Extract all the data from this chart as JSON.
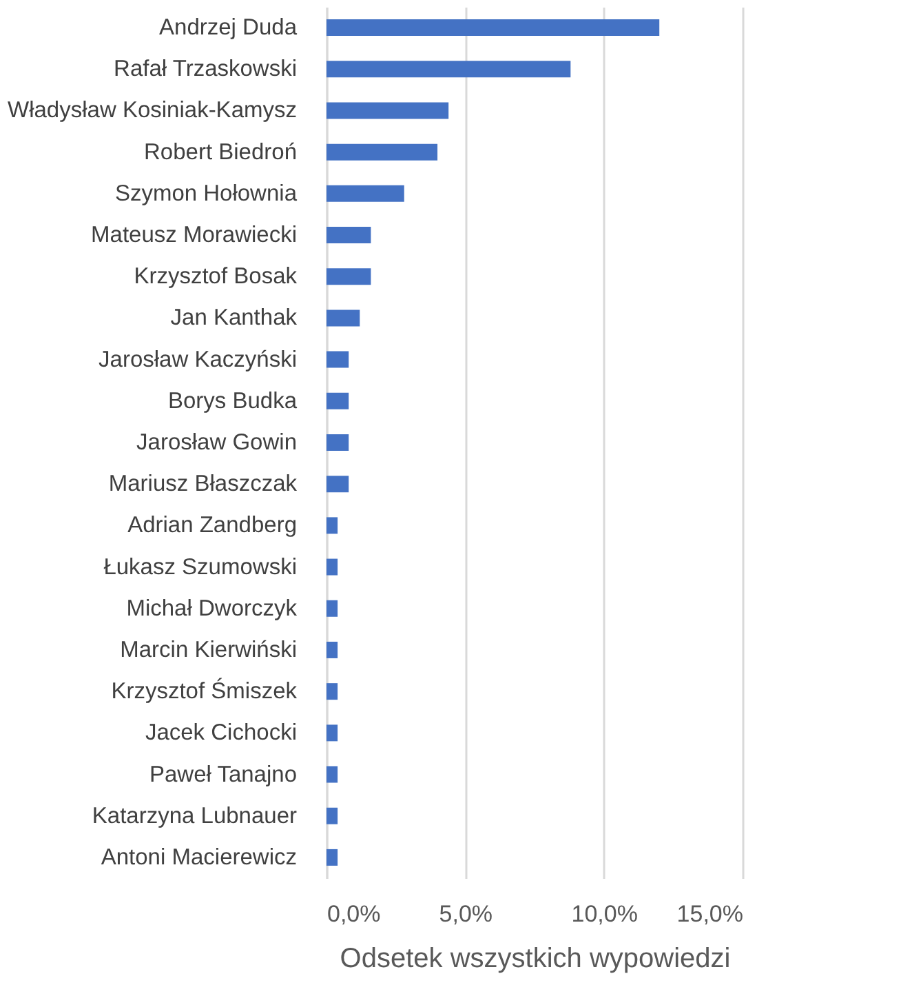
{
  "chart_data": {
    "type": "bar",
    "orientation": "horizontal",
    "xlabel": "Odsetek wszystkich wypowiedzi",
    "categories": [
      "Andrzej Duda",
      "Rafał Trzaskowski",
      "Władysław Kosiniak-Kamysz",
      "Robert Biedroń",
      "Szymon Hołownia",
      "Mateusz Morawiecki",
      "Krzysztof Bosak",
      "Jan Kanthak",
      "Jarosław Kaczyński",
      "Borys Budka",
      "Jarosław Gowin",
      "Mariusz Błaszczak",
      "Adrian Zandberg",
      "Łukasz Szumowski",
      "Michał Dworczyk",
      "Marcin Kierwiński",
      "Krzysztof Śmiszek",
      "Jacek Cichocki",
      "Paweł Tanajno",
      "Katarzyna Lubnauer",
      "Antoni Macierewicz"
    ],
    "values": [
      12.0,
      8.8,
      4.4,
      4.0,
      2.8,
      1.6,
      1.6,
      1.2,
      0.8,
      0.8,
      0.8,
      0.8,
      0.4,
      0.4,
      0.4,
      0.4,
      0.4,
      0.4,
      0.4,
      0.4,
      0.4
    ],
    "color": "#4472c4",
    "xlim": [
      0,
      15
    ],
    "xticks": [
      {
        "value": 0,
        "label": "0,0%"
      },
      {
        "value": 5,
        "label": "5,0%"
      },
      {
        "value": 10,
        "label": "10,0%"
      },
      {
        "value": 15,
        "label": "15,0%"
      }
    ],
    "grid": "x"
  }
}
